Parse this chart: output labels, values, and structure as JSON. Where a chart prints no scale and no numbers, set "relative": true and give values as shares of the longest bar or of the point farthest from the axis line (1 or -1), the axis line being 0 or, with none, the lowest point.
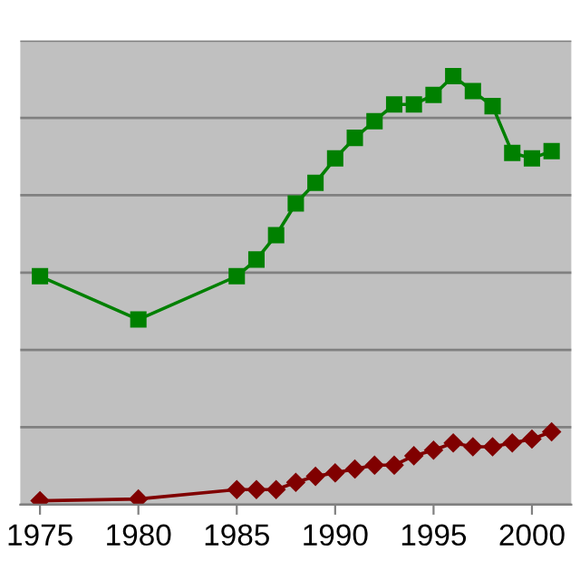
{
  "chart_data": {
    "type": "line",
    "relative": true,
    "x": [
      1975,
      1980,
      1985,
      1986,
      1987,
      1988,
      1989,
      1990,
      1991,
      1992,
      1993,
      1994,
      1995,
      1996,
      1997,
      1998,
      1999,
      2000,
      2001
    ],
    "xlim": [
      1974,
      2002
    ],
    "xticks": [
      1975,
      1980,
      1985,
      1990,
      1995,
      2000
    ],
    "grid": "y",
    "legend": false,
    "series": [
      {
        "color": "#008000",
        "marker": "square",
        "values": [
          0.533,
          0.432,
          0.533,
          0.572,
          0.629,
          0.703,
          0.751,
          0.808,
          0.856,
          0.895,
          0.934,
          0.934,
          0.956,
          1,
          0.965,
          0.93,
          0.821,
          0.808,
          0.825
        ]
      },
      {
        "color": "#800000",
        "marker": "diamond",
        "values": [
          0.009,
          0.013,
          0.035,
          0.035,
          0.035,
          0.052,
          0.066,
          0.074,
          0.083,
          0.092,
          0.092,
          0.114,
          0.127,
          0.144,
          0.135,
          0.135,
          0.144,
          0.153,
          0.17
        ]
      }
    ]
  }
}
